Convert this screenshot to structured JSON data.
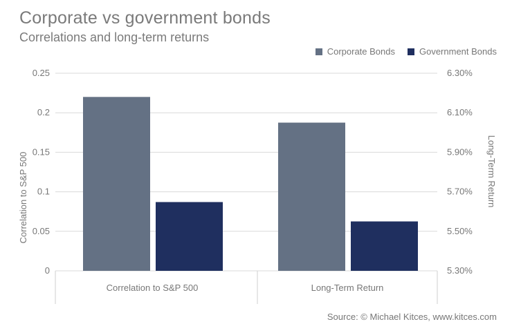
{
  "title": "Corporate vs government bonds",
  "subtitle": "Correlations and long-term returns",
  "source": "Source: © Michael Kitces, www.kitces.com",
  "colors": {
    "corporate": "#647184",
    "government": "#1f2f5f",
    "grid": "#d9d9d9",
    "axis_line": "#cfcfcf"
  },
  "chart_data": {
    "type": "bar",
    "title": "Corporate vs government bonds",
    "subtitle": "Correlations and long-term returns",
    "categories": [
      "Correlation to S&P 500",
      "Long-Term Return"
    ],
    "series": [
      {
        "name": "Corporate Bonds",
        "values": [
          0.22,
          6.05
        ],
        "units": [
          "correlation",
          "%"
        ]
      },
      {
        "name": "Government Bonds",
        "values": [
          0.087,
          5.55
        ],
        "units": [
          "correlation",
          "%"
        ]
      }
    ],
    "ylabel": "Correlation to S&P 500",
    "y2label": "Long-Term Return",
    "ylim": [
      0,
      0.25
    ],
    "y2lim": [
      5.3,
      6.3
    ],
    "yticks": [
      "0",
      "0.05",
      "0.1",
      "0.15",
      "0.2",
      "0.25"
    ],
    "y2ticks": [
      "5.30%",
      "5.50%",
      "5.70%",
      "5.90%",
      "6.10%",
      "6.30%"
    ],
    "grid": true,
    "legend_position": "top-right"
  }
}
